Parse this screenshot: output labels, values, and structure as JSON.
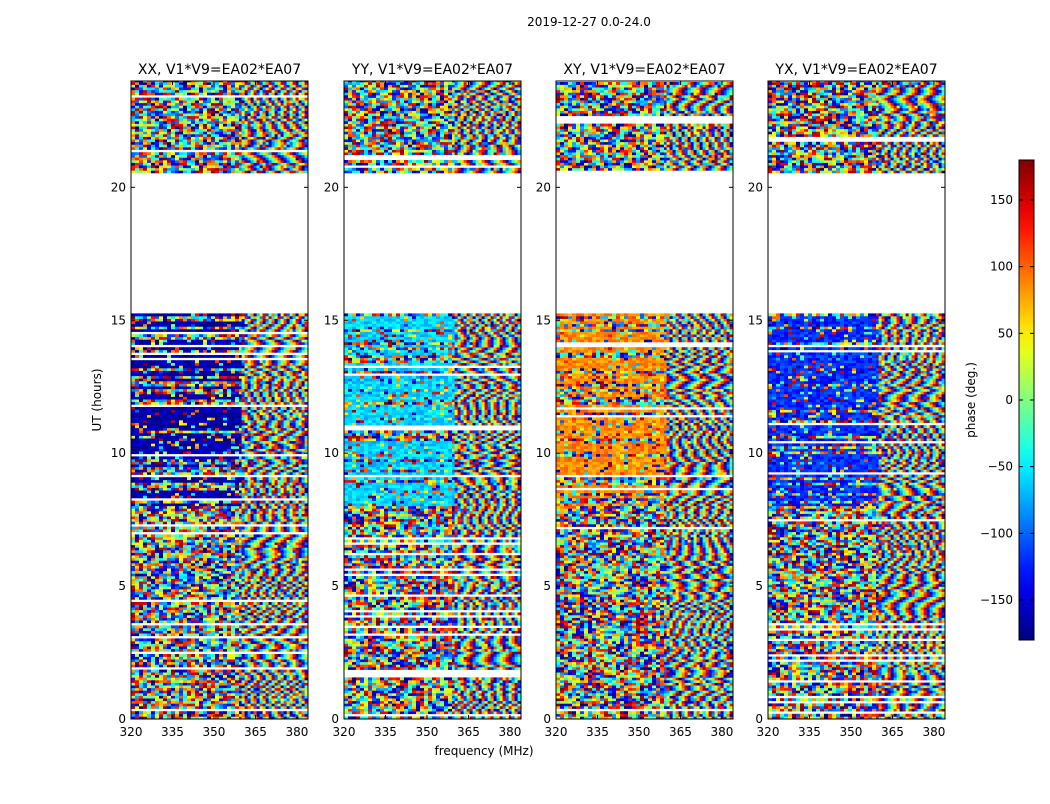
{
  "figure": {
    "suptitle": "2019-12-27 0.0-24.0",
    "xlabel": "frequency (MHz)",
    "ylabel": "UT (hours)",
    "colorbar_label": "phase (deg.)",
    "colorbar_ticks": [
      150,
      100,
      50,
      0,
      -50,
      -100,
      -150
    ],
    "colorbar_tick_labels": [
      "150",
      "100",
      "50",
      "0",
      "−50",
      "−100",
      "−150"
    ],
    "colorbar_range": [
      -180,
      180
    ]
  },
  "chart_data": [
    {
      "type": "heatmap",
      "title": "XX, V1*V9=EA02*EA07",
      "xlim": [
        320,
        384
      ],
      "ylim": [
        0,
        24
      ],
      "xticks": [
        320,
        335,
        350,
        365,
        380
      ],
      "xtick_labels": [
        "320",
        "335",
        "350",
        "365",
        "380"
      ],
      "yticks": [
        0,
        5,
        10,
        15,
        20
      ],
      "ytick_labels": [
        "0",
        "5",
        "10",
        "15",
        "20"
      ],
      "flagged_ut_range": [
        15.3,
        20.5
      ],
      "band_split_mhz": 360,
      "low_band_dominant_phase_deg": -165
    },
    {
      "type": "heatmap",
      "title": "YY, V1*V9=EA02*EA07",
      "xlim": [
        320,
        384
      ],
      "ylim": [
        0,
        24
      ],
      "xticks": [
        320,
        335,
        350,
        365,
        380
      ],
      "xtick_labels": [
        "320",
        "335",
        "350",
        "365",
        "380"
      ],
      "yticks": [
        0,
        5,
        10,
        15,
        20
      ],
      "ytick_labels": [
        "0",
        "5",
        "10",
        "15",
        "20"
      ],
      "flagged_ut_range": [
        15.3,
        20.5
      ],
      "band_split_mhz": 360,
      "low_band_dominant_phase_deg": -60
    },
    {
      "type": "heatmap",
      "title": "XY, V1*V9=EA02*EA07",
      "xlim": [
        320,
        384
      ],
      "ylim": [
        0,
        24
      ],
      "xticks": [
        320,
        335,
        350,
        365,
        380
      ],
      "xtick_labels": [
        "320",
        "335",
        "350",
        "365",
        "380"
      ],
      "yticks": [
        0,
        5,
        10,
        15,
        20
      ],
      "ytick_labels": [
        "0",
        "5",
        "10",
        "15",
        "20"
      ],
      "flagged_ut_range": [
        15.3,
        20.5
      ],
      "band_split_mhz": 360,
      "low_band_dominant_phase_deg": 85
    },
    {
      "type": "heatmap",
      "title": "YX, V1*V9=EA02*EA07",
      "xlim": [
        320,
        384
      ],
      "ylim": [
        0,
        24
      ],
      "xticks": [
        320,
        335,
        350,
        365,
        380
      ],
      "xtick_labels": [
        "320",
        "335",
        "350",
        "365",
        "380"
      ],
      "yticks": [
        0,
        5,
        10,
        15,
        20
      ],
      "ytick_labels": [
        "0",
        "5",
        "10",
        "15",
        "20"
      ],
      "flagged_ut_range": [
        15.3,
        20.5
      ],
      "band_split_mhz": 360,
      "low_band_dominant_phase_deg": -120
    }
  ]
}
